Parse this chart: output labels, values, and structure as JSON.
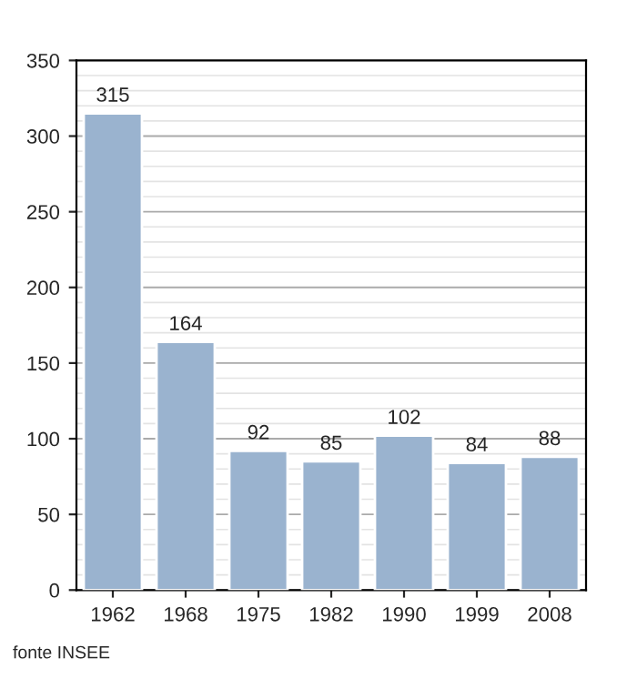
{
  "chart_data": {
    "type": "bar",
    "categories": [
      "1962",
      "1968",
      "1975",
      "1982",
      "1990",
      "1999",
      "2008"
    ],
    "values": [
      315,
      164,
      92,
      85,
      102,
      84,
      88
    ],
    "color": "#9ab3cf",
    "ylim": [
      0,
      350
    ],
    "yticks": [
      0,
      50,
      100,
      150,
      200,
      250,
      300,
      350
    ],
    "grid": "y",
    "data_labels": true,
    "legend": false,
    "annotations": [
      "fonte INSEE"
    ]
  }
}
